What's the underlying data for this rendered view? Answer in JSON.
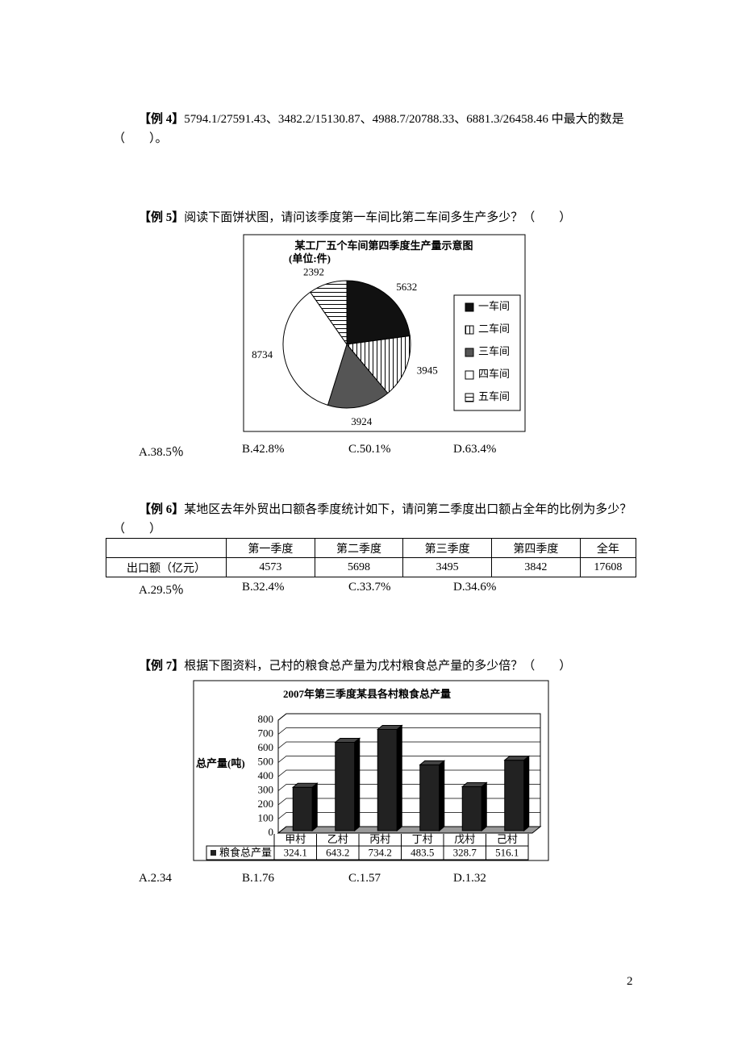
{
  "examples": [
    {
      "label": "【例 4】",
      "question": "5794.1/27591.43、3482.2/15130.87、4988.7/20788.33、6881.3/26458.46 中最大的数是（　　）。"
    },
    {
      "label": "【例 5】",
      "question": "阅读下面饼状图，请问该季度第一车间比第二车间多生产多少？（　　）",
      "chart_data": {
        "type": "pie",
        "title": "某工厂五个车间第四季度生产量示意图",
        "subtitle": "(单位:件)",
        "categories": [
          "一车间",
          "二车间",
          "三车间",
          "四车间",
          "五车间"
        ],
        "values": [
          5632,
          3945,
          3924,
          8734,
          2392
        ],
        "colors": [
          "#111111",
          "#ffffff",
          "#555555",
          "#ffffff",
          "#ffffff"
        ],
        "patterns": [
          "solid",
          "vertical",
          "solid",
          "solid",
          "horizontal"
        ],
        "legend": "right"
      },
      "options": [
        "A.38.5％",
        "B.42.8%",
        "C.50.1%",
        "D.63.4%"
      ]
    },
    {
      "label": "【例 6】",
      "question": "某地区去年外贸出口额各季度统计如下，请问第二季度出口额占全年的比例为多少？（　　）",
      "table": {
        "header": [
          "第一季度",
          "第二季度",
          "第三季度",
          "第四季度",
          "全年"
        ],
        "rows": [
          [
            "出口额（亿元）",
            4573,
            5698,
            3495,
            3842,
            17608
          ]
        ]
      },
      "options": [
        "A.29.5％",
        "B.32.4%",
        "C.33.7%",
        "D.34.6%"
      ]
    },
    {
      "label": "【例 7】",
      "question": "根据下图资料，己村的粮食总产量为戊村粮食总产量的多少倍？（　　）",
      "chart_data": {
        "type": "bar",
        "title": "2007年第三季度某县各村粮食总产量",
        "y_label": "总产量(吨)",
        "categories": [
          "甲村",
          "乙村",
          "丙村",
          "丁村",
          "戊村",
          "己村"
        ],
        "series": [
          {
            "name": "粮食总产量",
            "color": "#222222",
            "values": [
              324.1,
              643.2,
              734.2,
              483.5,
              328.7,
              516.1
            ]
          }
        ],
        "ylim": [
          0,
          800
        ],
        "yticks": [
          0,
          100,
          200,
          300,
          400,
          500,
          600,
          700,
          800
        ],
        "grid": true
      },
      "options": [
        "A.2.34",
        "B.1.76",
        "C.1.57",
        "D.1.32"
      ]
    }
  ],
  "page_number": "2"
}
